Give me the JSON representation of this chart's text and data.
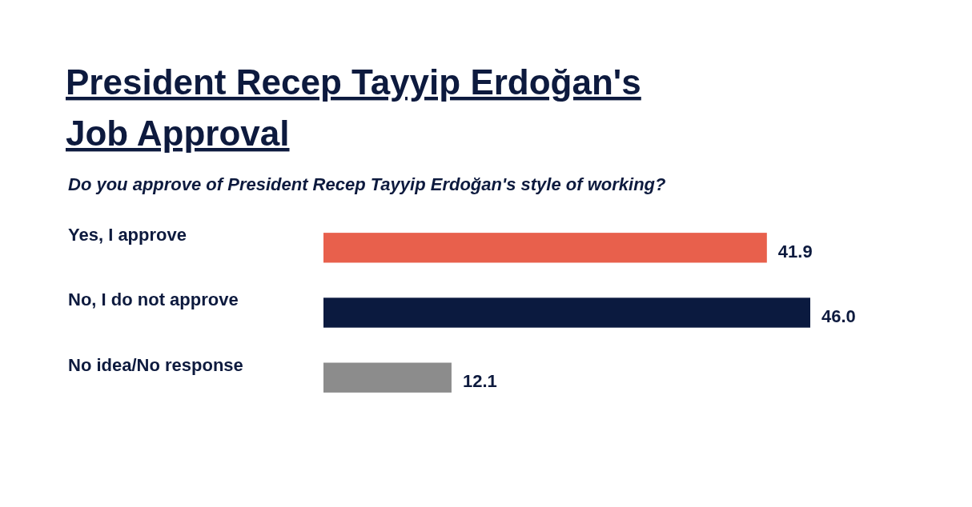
{
  "chart_data": {
    "type": "bar",
    "orientation": "horizontal",
    "title": "President Recep Tayyip Erdoğan's Job Approval",
    "subtitle": "Do you approve of President Recep Tayyip Erdoğan's style of working?",
    "categories": [
      "Yes, I approve",
      "No, I do not approve",
      "No idea/No response"
    ],
    "values": [
      41.9,
      46.0,
      12.1
    ],
    "colors": [
      "#e8604c",
      "#0b1a3f",
      "#8c8c8c"
    ],
    "value_labels": [
      "41.9",
      "46.0",
      "12.1"
    ]
  }
}
